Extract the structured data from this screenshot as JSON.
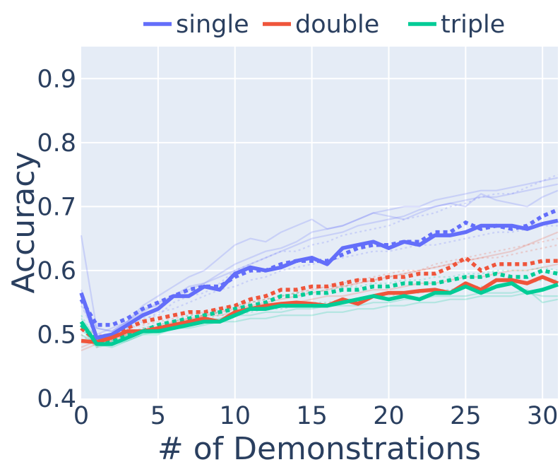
{
  "chart_data": {
    "type": "line",
    "title": "",
    "xlabel": "# of Demonstrations",
    "ylabel": "Accuracy",
    "xlim": [
      0,
      31
    ],
    "ylim": [
      0.4,
      0.95
    ],
    "x_ticks": [
      "0",
      "5",
      "10",
      "15",
      "20",
      "25",
      "30"
    ],
    "x_tick_values": [
      0,
      5,
      10,
      15,
      20,
      25,
      30
    ],
    "y_ticks": [
      "0.4",
      "0.5",
      "0.6",
      "0.7",
      "0.8",
      "0.9"
    ],
    "y_tick_values": [
      0.4,
      0.5,
      0.6,
      0.7,
      0.8,
      0.9
    ],
    "grid": true,
    "legend_position": "top",
    "background": "#e5ecf6",
    "x": [
      0,
      1,
      2,
      3,
      4,
      5,
      6,
      7,
      8,
      9,
      10,
      11,
      12,
      13,
      14,
      15,
      16,
      17,
      18,
      19,
      20,
      21,
      22,
      23,
      24,
      25,
      26,
      27,
      28,
      29,
      30,
      31
    ],
    "series": [
      {
        "name": "single",
        "color": "#636efa",
        "mean": [
          0.565,
          0.495,
          0.5,
          0.515,
          0.53,
          0.54,
          0.56,
          0.56,
          0.575,
          0.57,
          0.595,
          0.605,
          0.6,
          0.605,
          0.615,
          0.62,
          0.61,
          0.635,
          0.64,
          0.645,
          0.635,
          0.645,
          0.64,
          0.655,
          0.655,
          0.66,
          0.67,
          0.67,
          0.67,
          0.665,
          0.673,
          0.678
        ],
        "dotted": [
          0.555,
          0.515,
          0.515,
          0.525,
          0.54,
          0.55,
          0.56,
          0.57,
          0.575,
          0.575,
          0.59,
          0.6,
          0.6,
          0.61,
          0.615,
          0.615,
          0.615,
          0.625,
          0.635,
          0.64,
          0.64,
          0.645,
          0.645,
          0.66,
          0.66,
          0.675,
          0.665,
          0.67,
          0.665,
          0.67,
          0.685,
          0.695
        ],
        "faint": [
          [
            0.655,
            0.51,
            0.505,
            0.52,
            0.545,
            0.56,
            0.575,
            0.59,
            0.6,
            0.62,
            0.64,
            0.65,
            0.645,
            0.66,
            0.67,
            0.68,
            0.665,
            0.67,
            0.68,
            0.69,
            0.685,
            0.68,
            0.69,
            0.7,
            0.705,
            0.7,
            0.72,
            0.71,
            0.705,
            0.7,
            0.715,
            0.725
          ],
          [
            0.55,
            0.49,
            0.495,
            0.51,
            0.525,
            0.53,
            0.55,
            0.56,
            0.565,
            0.58,
            0.6,
            0.61,
            0.62,
            0.63,
            0.63,
            0.64,
            0.645,
            0.655,
            0.66,
            0.665,
            0.67,
            0.68,
            0.685,
            0.69,
            0.7,
            0.705,
            0.715,
            0.72,
            0.72,
            0.73,
            0.74,
            0.75
          ],
          [
            0.57,
            0.5,
            0.51,
            0.52,
            0.535,
            0.55,
            0.56,
            0.57,
            0.58,
            0.59,
            0.6,
            0.61,
            0.62,
            0.63,
            0.64,
            0.65,
            0.655,
            0.66,
            0.67,
            0.675,
            0.68,
            0.685,
            0.695,
            0.7,
            0.705,
            0.71,
            0.715,
            0.715,
            0.72,
            0.725,
            0.73,
            0.735
          ],
          [
            0.545,
            0.5,
            0.5,
            0.51,
            0.52,
            0.535,
            0.54,
            0.55,
            0.56,
            0.57,
            0.575,
            0.585,
            0.59,
            0.6,
            0.605,
            0.61,
            0.615,
            0.62,
            0.625,
            0.63,
            0.63,
            0.635,
            0.64,
            0.64,
            0.645,
            0.65,
            0.655,
            0.66,
            0.66,
            0.665,
            0.67,
            0.67
          ],
          [
            0.56,
            0.51,
            0.505,
            0.52,
            0.54,
            0.545,
            0.56,
            0.575,
            0.58,
            0.595,
            0.61,
            0.62,
            0.63,
            0.635,
            0.645,
            0.66,
            0.665,
            0.67,
            0.68,
            0.69,
            0.695,
            0.7,
            0.7,
            0.71,
            0.715,
            0.72,
            0.725,
            0.725,
            0.73,
            0.735,
            0.74,
            0.745
          ]
        ]
      },
      {
        "name": "double",
        "color": "#ef553b",
        "mean": [
          0.49,
          0.488,
          0.495,
          0.505,
          0.505,
          0.51,
          0.515,
          0.52,
          0.525,
          0.52,
          0.535,
          0.54,
          0.545,
          0.548,
          0.55,
          0.548,
          0.545,
          0.555,
          0.548,
          0.56,
          0.565,
          0.565,
          0.568,
          0.57,
          0.565,
          0.58,
          0.57,
          0.585,
          0.585,
          0.58,
          0.59,
          0.58
        ],
        "dotted": [
          0.51,
          0.49,
          0.5,
          0.51,
          0.52,
          0.525,
          0.53,
          0.535,
          0.535,
          0.54,
          0.545,
          0.555,
          0.56,
          0.57,
          0.57,
          0.575,
          0.575,
          0.58,
          0.585,
          0.585,
          0.59,
          0.59,
          0.595,
          0.595,
          0.605,
          0.62,
          0.6,
          0.61,
          0.61,
          0.61,
          0.615,
          0.615
        ],
        "faint": [
          [
            0.475,
            0.485,
            0.49,
            0.5,
            0.505,
            0.51,
            0.52,
            0.525,
            0.53,
            0.535,
            0.54,
            0.545,
            0.55,
            0.555,
            0.56,
            0.565,
            0.57,
            0.575,
            0.58,
            0.585,
            0.59,
            0.595,
            0.6,
            0.605,
            0.61,
            0.615,
            0.62,
            0.625,
            0.63,
            0.64,
            0.65,
            0.66
          ],
          [
            0.5,
            0.48,
            0.49,
            0.5,
            0.51,
            0.515,
            0.52,
            0.525,
            0.53,
            0.535,
            0.54,
            0.55,
            0.555,
            0.56,
            0.565,
            0.57,
            0.575,
            0.58,
            0.585,
            0.59,
            0.595,
            0.6,
            0.6,
            0.61,
            0.615,
            0.62,
            0.625,
            0.63,
            0.635,
            0.64,
            0.645,
            0.65
          ],
          [
            0.48,
            0.49,
            0.495,
            0.5,
            0.505,
            0.51,
            0.515,
            0.52,
            0.53,
            0.53,
            0.535,
            0.54,
            0.545,
            0.55,
            0.55,
            0.555,
            0.56,
            0.56,
            0.565,
            0.57,
            0.57,
            0.575,
            0.58,
            0.58,
            0.585,
            0.59,
            0.59,
            0.595,
            0.6,
            0.6,
            0.605,
            0.61
          ],
          [
            0.51,
            0.5,
            0.5,
            0.51,
            0.515,
            0.52,
            0.525,
            0.53,
            0.535,
            0.54,
            0.545,
            0.55,
            0.555,
            0.56,
            0.565,
            0.57,
            0.575,
            0.575,
            0.58,
            0.585,
            0.59,
            0.595,
            0.6,
            0.605,
            0.61,
            0.615,
            0.62,
            0.62,
            0.625,
            0.63,
            0.635,
            0.64
          ]
        ]
      },
      {
        "name": "triple",
        "color": "#00cc96",
        "mean": [
          0.52,
          0.485,
          0.485,
          0.495,
          0.505,
          0.505,
          0.51,
          0.515,
          0.52,
          0.52,
          0.53,
          0.54,
          0.54,
          0.545,
          0.545,
          0.545,
          0.545,
          0.55,
          0.555,
          0.56,
          0.555,
          0.56,
          0.555,
          0.565,
          0.565,
          0.575,
          0.565,
          0.575,
          0.58,
          0.565,
          0.57,
          0.578
        ],
        "dotted": [
          0.515,
          0.49,
          0.49,
          0.5,
          0.505,
          0.515,
          0.52,
          0.525,
          0.53,
          0.535,
          0.54,
          0.545,
          0.55,
          0.56,
          0.56,
          0.565,
          0.565,
          0.57,
          0.57,
          0.575,
          0.575,
          0.58,
          0.58,
          0.58,
          0.585,
          0.59,
          0.59,
          0.595,
          0.59,
          0.59,
          0.6,
          0.595
        ],
        "faint": [
          [
            0.51,
            0.48,
            0.485,
            0.49,
            0.5,
            0.5,
            0.51,
            0.52,
            0.52,
            0.525,
            0.53,
            0.53,
            0.535,
            0.535,
            0.54,
            0.54,
            0.545,
            0.545,
            0.545,
            0.55,
            0.55,
            0.555,
            0.555,
            0.56,
            0.56,
            0.56,
            0.565,
            0.565,
            0.565,
            0.57,
            0.55,
            0.555
          ],
          [
            0.53,
            0.49,
            0.49,
            0.495,
            0.505,
            0.51,
            0.515,
            0.52,
            0.525,
            0.53,
            0.53,
            0.535,
            0.54,
            0.54,
            0.545,
            0.55,
            0.55,
            0.555,
            0.555,
            0.56,
            0.56,
            0.565,
            0.565,
            0.57,
            0.57,
            0.575,
            0.575,
            0.575,
            0.58,
            0.58,
            0.585,
            0.585
          ],
          [
            0.5,
            0.485,
            0.48,
            0.49,
            0.5,
            0.505,
            0.51,
            0.51,
            0.515,
            0.52,
            0.52,
            0.525,
            0.525,
            0.53,
            0.53,
            0.53,
            0.535,
            0.535,
            0.54,
            0.54,
            0.545,
            0.545,
            0.55,
            0.55,
            0.555,
            0.555,
            0.56,
            0.56,
            0.56,
            0.565,
            0.56,
            0.56
          ],
          [
            0.525,
            0.495,
            0.49,
            0.5,
            0.51,
            0.515,
            0.52,
            0.53,
            0.53,
            0.535,
            0.545,
            0.55,
            0.555,
            0.56,
            0.565,
            0.565,
            0.57,
            0.575,
            0.575,
            0.58,
            0.58,
            0.585,
            0.585,
            0.59,
            0.59,
            0.595,
            0.595,
            0.6,
            0.6,
            0.6,
            0.605,
            0.6
          ]
        ]
      }
    ]
  }
}
